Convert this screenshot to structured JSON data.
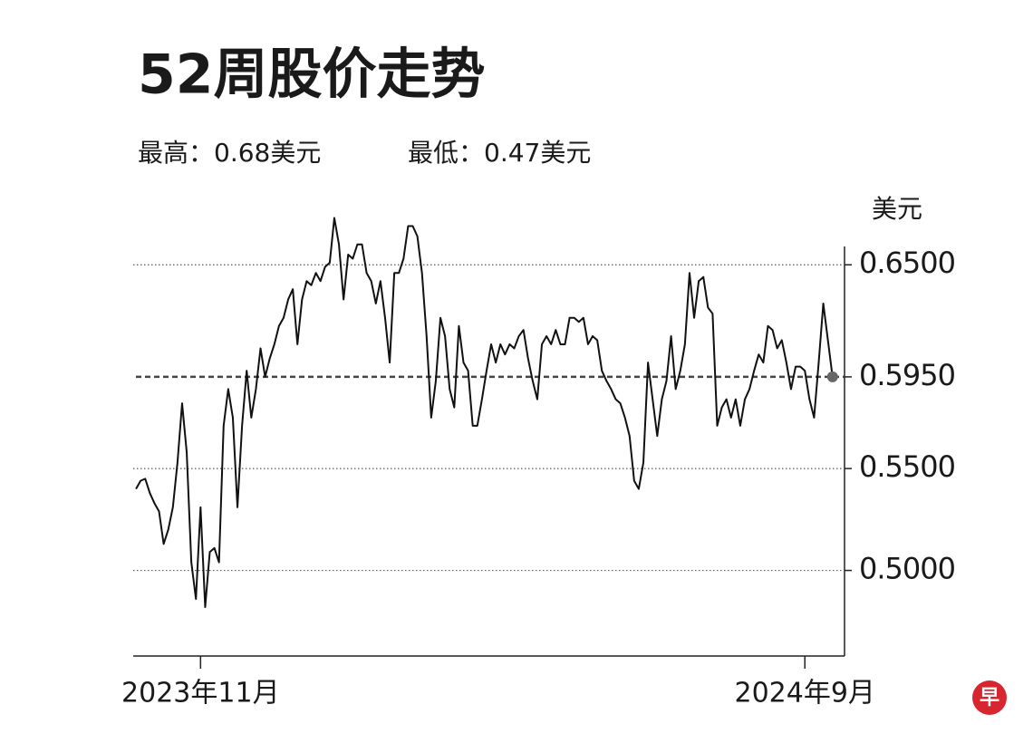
{
  "chart_data": {
    "type": "line",
    "title": "52周股价走势",
    "high_label": "最高：0.68美元",
    "low_label": "最低：0.47美元",
    "y_axis_label": "美元",
    "logo": "早",
    "series": [
      {
        "color": "#111111",
        "values": [
          0.54,
          0.544,
          0.545,
          0.538,
          0.533,
          0.529,
          0.513,
          0.52,
          0.531,
          0.553,
          0.582,
          0.558,
          0.504,
          0.486,
          0.531,
          0.482,
          0.509,
          0.511,
          0.504,
          0.571,
          0.589,
          0.575,
          0.531,
          0.571,
          0.598,
          0.575,
          0.589,
          0.609,
          0.595,
          0.604,
          0.611,
          0.62,
          0.624,
          0.633,
          0.638,
          0.611,
          0.633,
          0.642,
          0.64,
          0.646,
          0.642,
          0.649,
          0.651,
          0.673,
          0.66,
          0.633,
          0.655,
          0.653,
          0.66,
          0.66,
          0.646,
          0.642,
          0.631,
          0.642,
          0.624,
          0.602,
          0.646,
          0.646,
          0.653,
          0.669,
          0.669,
          0.664,
          0.646,
          0.615,
          0.575,
          0.593,
          0.624,
          0.615,
          0.589,
          0.58,
          0.62,
          0.602,
          0.598,
          0.571,
          0.571,
          0.584,
          0.598,
          0.611,
          0.602,
          0.611,
          0.606,
          0.611,
          0.609,
          0.615,
          0.618,
          0.604,
          0.593,
          0.584,
          0.611,
          0.615,
          0.611,
          0.618,
          0.611,
          0.611,
          0.624,
          0.624,
          0.622,
          0.624,
          0.611,
          0.615,
          0.613,
          0.598,
          0.593,
          0.589,
          0.584,
          0.582,
          0.575,
          0.566,
          0.544,
          0.54,
          0.553,
          0.602,
          0.584,
          0.566,
          0.584,
          0.593,
          0.615,
          0.589,
          0.598,
          0.611,
          0.646,
          0.624,
          0.642,
          0.644,
          0.629,
          0.626,
          0.571,
          0.58,
          0.584,
          0.575,
          0.584,
          0.571,
          0.584,
          0.589,
          0.598,
          0.606,
          0.602,
          0.62,
          0.618,
          0.609,
          0.613,
          0.602,
          0.589,
          0.6,
          0.6,
          0.598,
          0.584,
          0.575,
          0.602,
          0.631,
          0.613,
          0.595
        ]
      }
    ],
    "reference_line": 0.595,
    "xlim": [
      -0.6,
      153.6
    ],
    "xticks": [
      {
        "value": 14,
        "label": "2023年11月"
      },
      {
        "value": 145,
        "label": "2024年9月"
      }
    ],
    "ylim": [
      0.458,
      0.659
    ],
    "yticks": [
      {
        "value": 0.5,
        "label": "0.5000"
      },
      {
        "value": 0.55,
        "label": "0.5500"
      },
      {
        "value": 0.595,
        "label": "0.5950"
      },
      {
        "value": 0.65,
        "label": "0.6500"
      }
    ],
    "grid": true
  }
}
